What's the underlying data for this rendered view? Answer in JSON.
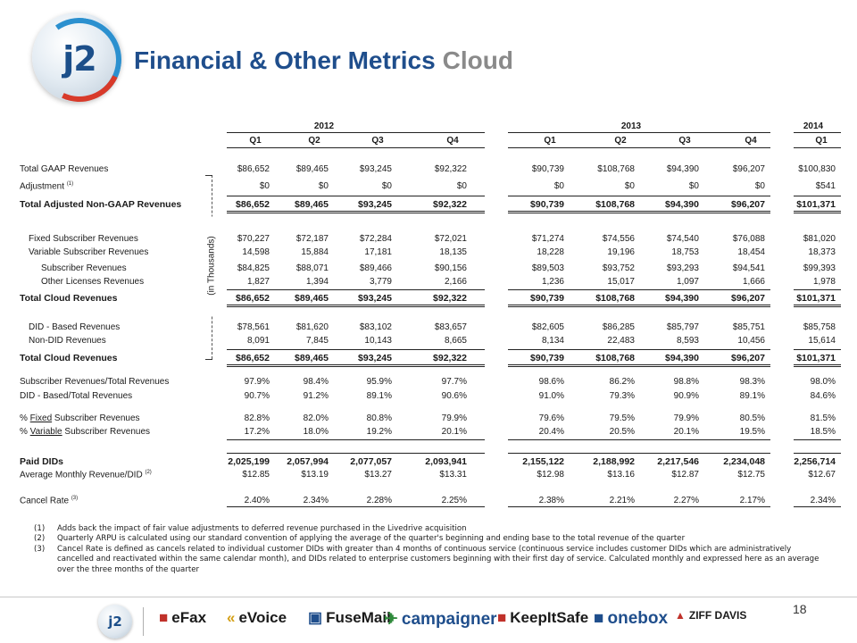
{
  "header": {
    "logo_text": "j2",
    "title": "Financial & Other Metrics",
    "subtitle": "Cloud"
  },
  "table": {
    "units_label": "(in Thousands)",
    "years": [
      {
        "label": "2012"
      },
      {
        "label": "2013"
      },
      {
        "label": "2014"
      }
    ],
    "quarters": [
      "Q1",
      "Q2",
      "Q3",
      "Q4",
      "Q1",
      "Q2",
      "Q3",
      "Q4",
      "Q1"
    ],
    "rows": [
      {
        "label": "Total GAAP Revenues",
        "values": [
          "$86,652",
          "$89,465",
          "$93,245",
          "$92,322",
          "$90,739",
          "$108,768",
          "$94,390",
          "$96,207",
          "$100,830"
        ]
      },
      {
        "label": "Adjustment",
        "sup": "(1)",
        "values": [
          "$0",
          "$0",
          "$0",
          "$0",
          "$0",
          "$0",
          "$0",
          "$0",
          "$541"
        ]
      },
      {
        "label": "Total Adjusted Non-GAAP Revenues",
        "values": [
          "$86,652",
          "$89,465",
          "$93,245",
          "$92,322",
          "$90,739",
          "$108,768",
          "$94,390",
          "$96,207",
          "$101,371"
        ]
      },
      {
        "label": "Fixed Subscriber Revenues",
        "values": [
          "$70,227",
          "$72,187",
          "$72,284",
          "$72,021",
          "$71,274",
          "$74,556",
          "$74,540",
          "$76,088",
          "$81,020"
        ]
      },
      {
        "label": "Variable Subscriber Revenues",
        "values": [
          "14,598",
          "15,884",
          "17,181",
          "18,135",
          "18,228",
          "19,196",
          "18,753",
          "18,454",
          "18,373"
        ]
      },
      {
        "label": "Subscriber Revenues",
        "values": [
          "$84,825",
          "$88,071",
          "$89,466",
          "$90,156",
          "$89,503",
          "$93,752",
          "$93,293",
          "$94,541",
          "$99,393"
        ]
      },
      {
        "label": "Other Licenses Revenues",
        "values": [
          "1,827",
          "1,394",
          "3,779",
          "2,166",
          "1,236",
          "15,017",
          "1,097",
          "1,666",
          "1,978"
        ]
      },
      {
        "label": "Total Cloud Revenues",
        "values": [
          "$86,652",
          "$89,465",
          "$93,245",
          "$92,322",
          "$90,739",
          "$108,768",
          "$94,390",
          "$96,207",
          "$101,371"
        ]
      },
      {
        "label": "DID - Based Revenues",
        "values": [
          "$78,561",
          "$81,620",
          "$83,102",
          "$83,657",
          "$82,605",
          "$86,285",
          "$85,797",
          "$85,751",
          "$85,758"
        ]
      },
      {
        "label": "Non-DID Revenues",
        "values": [
          "8,091",
          "7,845",
          "10,143",
          "8,665",
          "8,134",
          "22,483",
          "8,593",
          "10,456",
          "15,614"
        ]
      },
      {
        "label": "Total Cloud Revenues",
        "values": [
          "$86,652",
          "$89,465",
          "$93,245",
          "$92,322",
          "$90,739",
          "$108,768",
          "$94,390",
          "$96,207",
          "$101,371"
        ]
      },
      {
        "label": "Subscriber Revenues/Total Revenues",
        "values": [
          "97.9%",
          "98.4%",
          "95.9%",
          "97.7%",
          "98.6%",
          "86.2%",
          "98.8%",
          "98.3%",
          "98.0%"
        ]
      },
      {
        "label": "DID - Based/Total Revenues",
        "values": [
          "90.7%",
          "91.2%",
          "89.1%",
          "90.6%",
          "91.0%",
          "79.3%",
          "90.9%",
          "89.1%",
          "84.6%"
        ]
      },
      {
        "pre": "% ",
        "u": "Fixed",
        "post": " Subscriber Revenues",
        "values": [
          "82.8%",
          "82.0%",
          "80.8%",
          "79.9%",
          "79.6%",
          "79.5%",
          "79.9%",
          "80.5%",
          "81.5%"
        ]
      },
      {
        "pre": "% ",
        "u": "Variable",
        "post": " Subscriber Revenues",
        "values": [
          "17.2%",
          "18.0%",
          "19.2%",
          "20.1%",
          "20.4%",
          "20.5%",
          "20.1%",
          "19.5%",
          "18.5%"
        ]
      },
      {
        "label": "Paid DIDs",
        "values": [
          "2,025,199",
          "2,057,994",
          "2,077,057",
          "2,093,941",
          "2,155,122",
          "2,188,992",
          "2,217,546",
          "2,234,048",
          "2,256,714"
        ]
      },
      {
        "label": "Average Monthly Revenue/DID",
        "sup": "(2)",
        "values": [
          "$12.85",
          "$13.19",
          "$13.27",
          "$13.31",
          "$12.98",
          "$13.16",
          "$12.87",
          "$12.75",
          "$12.67"
        ]
      },
      {
        "label": "Cancel Rate",
        "sup": "(3)",
        "values": [
          "2.40%",
          "2.34%",
          "2.28%",
          "2.25%",
          "2.38%",
          "2.21%",
          "2.27%",
          "2.17%",
          "2.34%"
        ]
      }
    ]
  },
  "footnotes": [
    {
      "num": "(1)",
      "text": "Adds back the impact of fair value adjustments to deferred revenue purchased in the Livedrive acquisition"
    },
    {
      "num": "(2)",
      "text": "Quarterly ARPU is calculated using our standard convention of applying the average of the quarter's beginning and ending base to the total revenue of the quarter"
    },
    {
      "num": "(3)",
      "text": "Cancel Rate is defined as cancels related to individual customer DIDs with greater than 4 months of continuous service (continuous service includes customer DIDs which are administratively cancelled and reactivated within the same calendar month), and DIDs related to enterprise customers beginning with their first day of service. Calculated monthly and expressed here as an average over the three months of the quarter"
    }
  ],
  "footer": {
    "logo_text": "j2",
    "brands": [
      {
        "name": "eFax",
        "color": "#1a1a1a"
      },
      {
        "name": "eVoice",
        "color": "#1a1a1a"
      },
      {
        "name": "FuseMail",
        "color": "#1a1a1a"
      },
      {
        "name": "campaigner",
        "color": "#1f4e8c"
      },
      {
        "name": "KeepItSafe",
        "color": "#1a1a1a"
      },
      {
        "name": "onebox",
        "color": "#1f4e8c"
      },
      {
        "name": "ZIFF DAVIS",
        "color": "#1a1a1a"
      }
    ],
    "page_number": "18"
  }
}
